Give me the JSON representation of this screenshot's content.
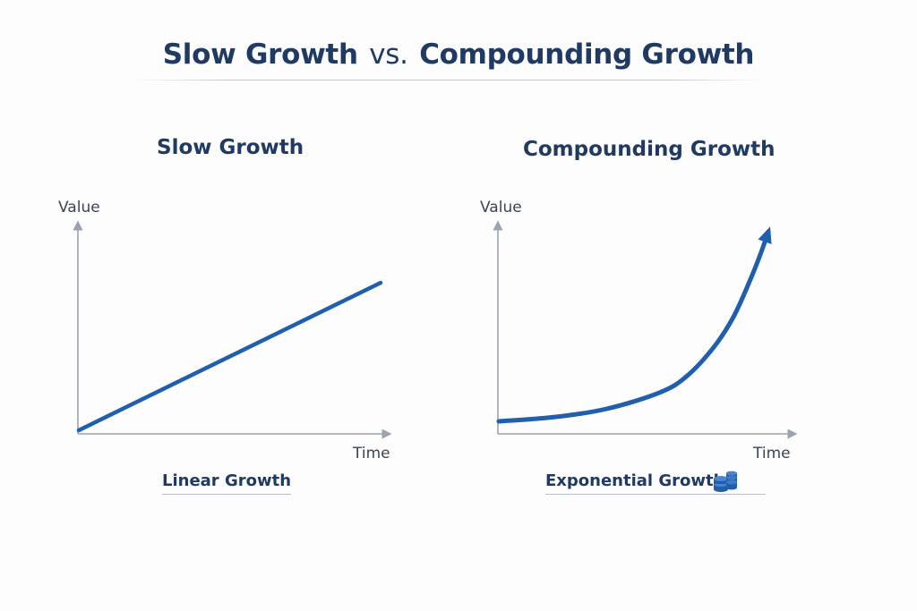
{
  "title": {
    "part1": "Slow Growth",
    "vs": "vs.",
    "part2": "Compounding Growth"
  },
  "colors": {
    "title": "#1f3a63",
    "line": "#1f5fae",
    "axis": "#9aa3ae"
  },
  "icons": {
    "coins": "coin-stack-icon"
  },
  "chart_data": [
    {
      "type": "line",
      "title": "Slow Growth",
      "xlabel": "Time",
      "ylabel": "Value",
      "caption": "Linear Growth",
      "x": [
        0,
        1
      ],
      "y": [
        0,
        0.72
      ],
      "ylim": [
        0,
        1
      ],
      "grid": false
    },
    {
      "type": "line",
      "title": "Compounding Growth",
      "xlabel": "Time",
      "ylabel": "Value",
      "caption": "Exponential Growth",
      "x": [
        0,
        0.2,
        0.4,
        0.6,
        0.7,
        0.8,
        0.87,
        0.93,
        0.97,
        1.0
      ],
      "y": [
        0.06,
        0.08,
        0.12,
        0.2,
        0.28,
        0.42,
        0.56,
        0.73,
        0.86,
        0.97
      ],
      "ylim": [
        0,
        1
      ],
      "grid": false,
      "arrowhead": true
    }
  ]
}
